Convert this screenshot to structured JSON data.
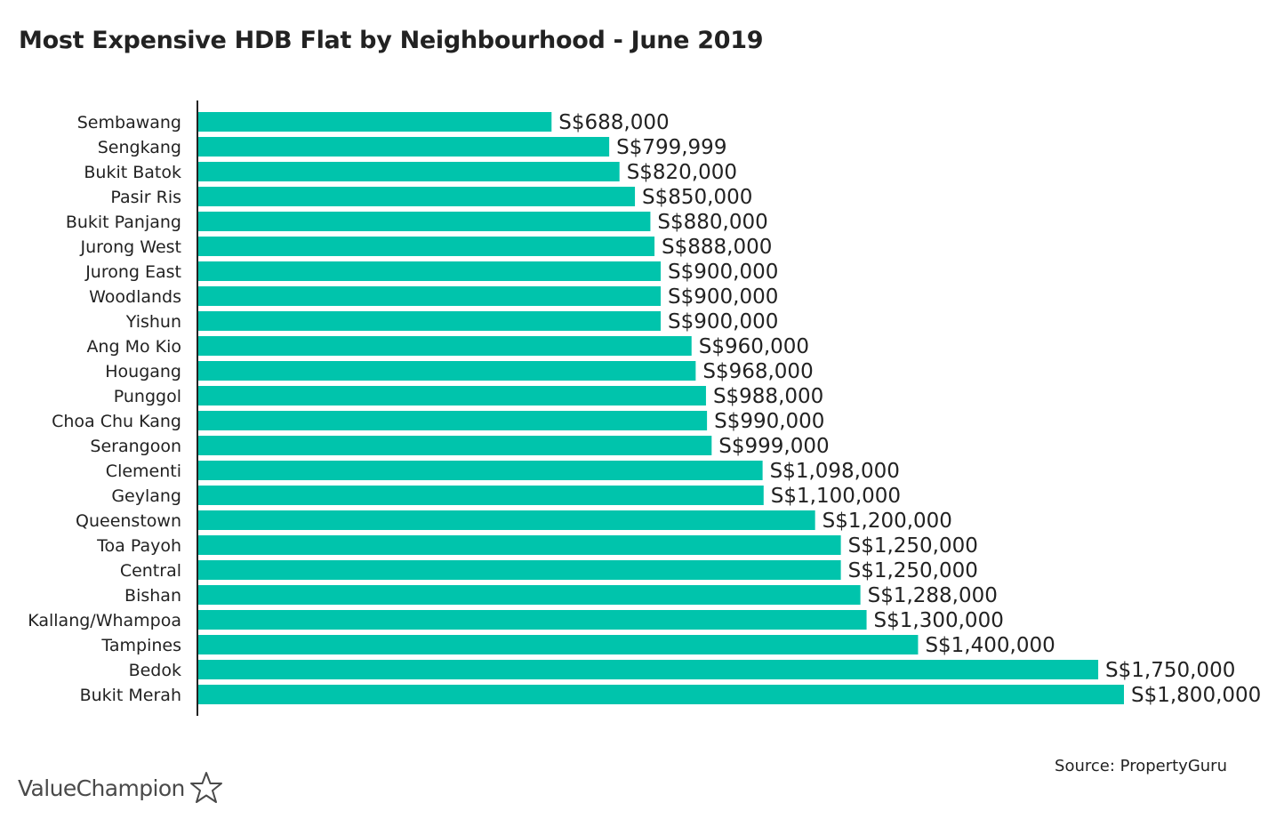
{
  "title": "Most Expensive HDB Flat by Neighbourhood - June 2019",
  "source": "Source: PropertyGuru",
  "brand": {
    "name": "ValueChampion",
    "icon": "star-outline-icon"
  },
  "colors": {
    "bar": "#00c4ac",
    "text": "#222222",
    "axis": "#222222"
  },
  "chart_data": {
    "type": "bar",
    "orientation": "horizontal",
    "title": "Most Expensive HDB Flat by Neighbourhood - June 2019",
    "xlim": [
      0,
      1800000
    ],
    "grid": false,
    "categories": [
      "Sembawang",
      "Sengkang",
      "Bukit Batok",
      "Pasir Ris",
      "Bukit Panjang",
      "Jurong West",
      "Jurong East",
      "Woodlands",
      "Yishun",
      "Ang Mo Kio",
      "Hougang",
      "Punggol",
      "Choa Chu Kang",
      "Serangoon",
      "Clementi",
      "Geylang",
      "Queenstown",
      "Toa Payoh",
      "Central",
      "Bishan",
      "Kallang/Whampoa",
      "Tampines",
      "Bedok",
      "Bukit Merah"
    ],
    "values": [
      688000,
      799999,
      820000,
      850000,
      880000,
      888000,
      900000,
      900000,
      900000,
      960000,
      968000,
      988000,
      990000,
      999000,
      1098000,
      1100000,
      1200000,
      1250000,
      1250000,
      1288000,
      1300000,
      1400000,
      1750000,
      1800000
    ],
    "value_labels": [
      "S$688,000",
      "S$799,999",
      "S$820,000",
      "S$850,000",
      "S$880,000",
      "S$888,000",
      "S$900,000",
      "S$900,000",
      "S$900,000",
      "S$960,000",
      "S$968,000",
      "S$988,000",
      "S$990,000",
      "S$999,000",
      "S$1,098,000",
      "S$1,100,000",
      "S$1,200,000",
      "S$1,250,000",
      "S$1,250,000",
      "S$1,288,000",
      "S$1,300,000",
      "S$1,400,000",
      "S$1,750,000",
      "S$1,800,000"
    ]
  }
}
